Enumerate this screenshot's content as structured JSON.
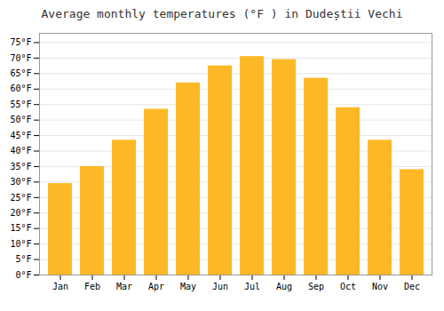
{
  "chart_data": {
    "type": "bar",
    "title": "Average monthly temperatures (°F ) in Dudeștii Vechi",
    "categories": [
      "Jan",
      "Feb",
      "Mar",
      "Apr",
      "May",
      "Jun",
      "Jul",
      "Aug",
      "Sep",
      "Oct",
      "Nov",
      "Dec"
    ],
    "values": [
      29.5,
      35.0,
      43.5,
      53.5,
      62.0,
      67.5,
      70.5,
      69.5,
      63.5,
      54.0,
      43.5,
      34.0
    ],
    "color": "#FDB827",
    "ylim": [
      0,
      78
    ],
    "yticks": [
      {
        "value": 0,
        "label": "0°F"
      },
      {
        "value": 5,
        "label": "5°F"
      },
      {
        "value": 10,
        "label": "10°F"
      },
      {
        "value": 15,
        "label": "15°F"
      },
      {
        "value": 20,
        "label": "20°F"
      },
      {
        "value": 25,
        "label": "25°F"
      },
      {
        "value": 30,
        "label": "30°F"
      },
      {
        "value": 35,
        "label": "35°F"
      },
      {
        "value": 40,
        "label": "40°F"
      },
      {
        "value": 45,
        "label": "45°F"
      },
      {
        "value": 50,
        "label": "50°F"
      },
      {
        "value": 55,
        "label": "55°F"
      },
      {
        "value": 60,
        "label": "60°F"
      },
      {
        "value": 65,
        "label": "65°F"
      },
      {
        "value": 70,
        "label": "70°F"
      },
      {
        "value": 75,
        "label": "75°F"
      }
    ],
    "grid": true
  }
}
